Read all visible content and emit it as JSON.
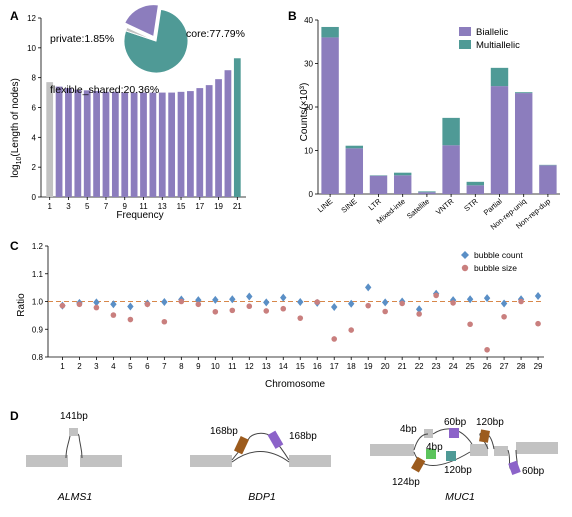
{
  "colors": {
    "purple": "#8c7dbd",
    "teal": "#4f9a96",
    "gray": "#c2c2c2",
    "diamond": "#5a8fc6",
    "circle": "#c97f7e",
    "refline": "#d7874a",
    "brown": "#9c5b1d",
    "green": "#5cc45c"
  },
  "panels": {
    "a": "A",
    "b": "B",
    "c": "C",
    "d": "D"
  },
  "chart_data": [
    {
      "id": "A",
      "type": "bar",
      "xlabel": "Frequency",
      "ylabel_main": "log",
      "ylabel_sub": "10",
      "ylabel_rest": "(Length of nodes)",
      "ylim": [
        0,
        12
      ],
      "yticks": [
        0,
        2,
        4,
        6,
        8,
        10,
        12
      ],
      "x": [
        1,
        2,
        3,
        4,
        5,
        6,
        7,
        8,
        9,
        10,
        11,
        12,
        13,
        14,
        15,
        16,
        17,
        18,
        19,
        20,
        21
      ],
      "xtick_labels": [
        "1",
        "3",
        "5",
        "7",
        "9",
        "11",
        "13",
        "15",
        "17",
        "19",
        "21"
      ],
      "values": [
        7.7,
        7.4,
        7.3,
        7.2,
        7.15,
        7.1,
        7.05,
        7.05,
        7.0,
        7.0,
        7.0,
        7.0,
        7.0,
        7.0,
        7.05,
        7.1,
        7.3,
        7.5,
        7.9,
        8.5,
        9.3
      ],
      "bar_colors": [
        "gray",
        "purple",
        "purple",
        "purple",
        "purple",
        "purple",
        "purple",
        "purple",
        "purple",
        "purple",
        "purple",
        "purple",
        "purple",
        "purple",
        "purple",
        "purple",
        "purple",
        "purple",
        "purple",
        "purple",
        "teal"
      ],
      "labels": {
        "private": "private:1.85%",
        "core": "core:77.79%",
        "flexible": "flexible_shared:20.36%"
      },
      "pie": [
        {
          "name": "core",
          "value": 77.79,
          "color": "teal"
        },
        {
          "name": "private",
          "value": 1.85,
          "color": "gray"
        },
        {
          "name": "flexible_shared",
          "value": 20.36,
          "color": "purple"
        }
      ]
    },
    {
      "id": "B",
      "type": "bar",
      "stacked": true,
      "ylabel": "Counts(×10³)",
      "ylim": [
        0,
        40
      ],
      "yticks": [
        0,
        10,
        20,
        30,
        40
      ],
      "categories": [
        "LINE",
        "SINE",
        "LTR",
        "Mixed-inte",
        "Satellite",
        "VNTR",
        "STR",
        "Partial",
        "Non-rep-uniq",
        "Non-rep-dup"
      ],
      "series": [
        {
          "name": "Biallelic",
          "color": "purple",
          "values": [
            36.0,
            10.5,
            4.2,
            4.3,
            0.4,
            11.2,
            2.0,
            24.8,
            23.2,
            6.6
          ]
        },
        {
          "name": "Multiallelic",
          "color": "teal",
          "values": [
            2.4,
            0.6,
            0.1,
            0.6,
            0.2,
            6.3,
            0.8,
            4.2,
            0.2,
            0.1
          ]
        }
      ]
    },
    {
      "id": "C",
      "type": "scatter",
      "ylabel": "Ratio",
      "xlabel": "Chromosome",
      "ylim": [
        0.8,
        1.2
      ],
      "yticks": [
        0.8,
        0.9,
        1.0,
        1.1,
        1.2
      ],
      "ytick_labels": [
        "0.8",
        "0.9",
        "1.0",
        "1.1",
        "1.2"
      ],
      "reference_line": 1.0,
      "x": [
        1,
        2,
        3,
        4,
        5,
        6,
        7,
        8,
        9,
        10,
        11,
        12,
        13,
        14,
        15,
        16,
        17,
        18,
        19,
        20,
        21,
        22,
        23,
        24,
        25,
        26,
        27,
        28,
        29
      ],
      "series": [
        {
          "name": "bubble count",
          "marker": "diamond",
          "color": "diamond",
          "values": [
            0.985,
            0.995,
            0.997,
            0.99,
            0.982,
            0.993,
            0.998,
            1.007,
            1.005,
            1.006,
            1.008,
            1.018,
            0.997,
            1.014,
            0.998,
            0.995,
            0.98,
            0.992,
            1.051,
            0.997,
            1.0,
            0.972,
            1.028,
            1.005,
            1.008,
            1.012,
            0.993,
            1.008,
            1.02
          ]
        },
        {
          "name": "bubble size",
          "marker": "circle",
          "color": "circle",
          "values": [
            0.985,
            0.99,
            0.978,
            0.951,
            0.935,
            0.99,
            0.927,
            1.0,
            0.99,
            0.963,
            0.968,
            0.983,
            0.966,
            0.974,
            0.94,
            0.998,
            0.865,
            0.897,
            0.985,
            0.964,
            0.993,
            0.955,
            1.022,
            0.995,
            0.918,
            0.826,
            0.945,
            1.0,
            0.92
          ]
        }
      ]
    }
  ],
  "panel_d": {
    "alms1": {
      "name": "ALMS1",
      "label": "141bp"
    },
    "bdp1": {
      "name": "BDP1",
      "label_left": "168bp",
      "label_right": "168bp"
    },
    "muc1": {
      "name": "MUC1",
      "l_4bp_top": "4bp",
      "l_60bp_top": "60bp",
      "l_120bp_top": "120bp",
      "l_4bp_mid": "4bp",
      "l_120bp_mid": "120bp",
      "l_124bp": "124bp",
      "l_60bp_right": "60bp"
    }
  }
}
